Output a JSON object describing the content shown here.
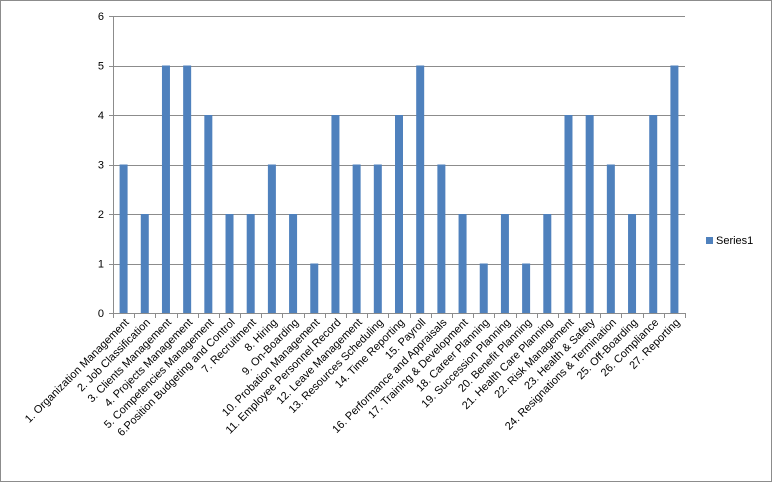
{
  "chart_data": {
    "type": "bar",
    "categories": [
      "1. Organization Management",
      "2. Job Classification",
      "3. Clients Management",
      "4. Projects Management",
      "5. Competencies Management",
      "6.Position Budgeting and Control",
      "7. Recruitment",
      "8. Hiring",
      "9. On-Boarding",
      "10. Probation Management",
      "11. Employee Personnel Record",
      "12. Leave Management",
      "13. Resources Scheduling",
      "14. Time Reporting",
      "15. Payroll",
      "16. Performance and Appraisals",
      "17. Training & Development",
      "18. Career Planning",
      "19. Succession Planning",
      "20. Benefit Planning",
      "21. Health Care Planning",
      "22. Risk Management",
      "23. Health & Safety",
      "24. Resignations & Termination",
      "25. Off-Boarding",
      "26. Compliance",
      "27. Reporting"
    ],
    "series": [
      {
        "name": "Series1",
        "color": "#4f81bd",
        "values": [
          3,
          2,
          5,
          5,
          4,
          2,
          2,
          3,
          2,
          1,
          4,
          3,
          3,
          4,
          5,
          3,
          2,
          1,
          2,
          1,
          2,
          4,
          4,
          3,
          2,
          4,
          5
        ]
      }
    ],
    "ylim": [
      0,
      6
    ],
    "yticks": [
      "0",
      "1",
      "2",
      "3",
      "4",
      "5",
      "6"
    ],
    "grid": true,
    "legend": "right",
    "title": "",
    "xlabel": "",
    "ylabel": ""
  }
}
